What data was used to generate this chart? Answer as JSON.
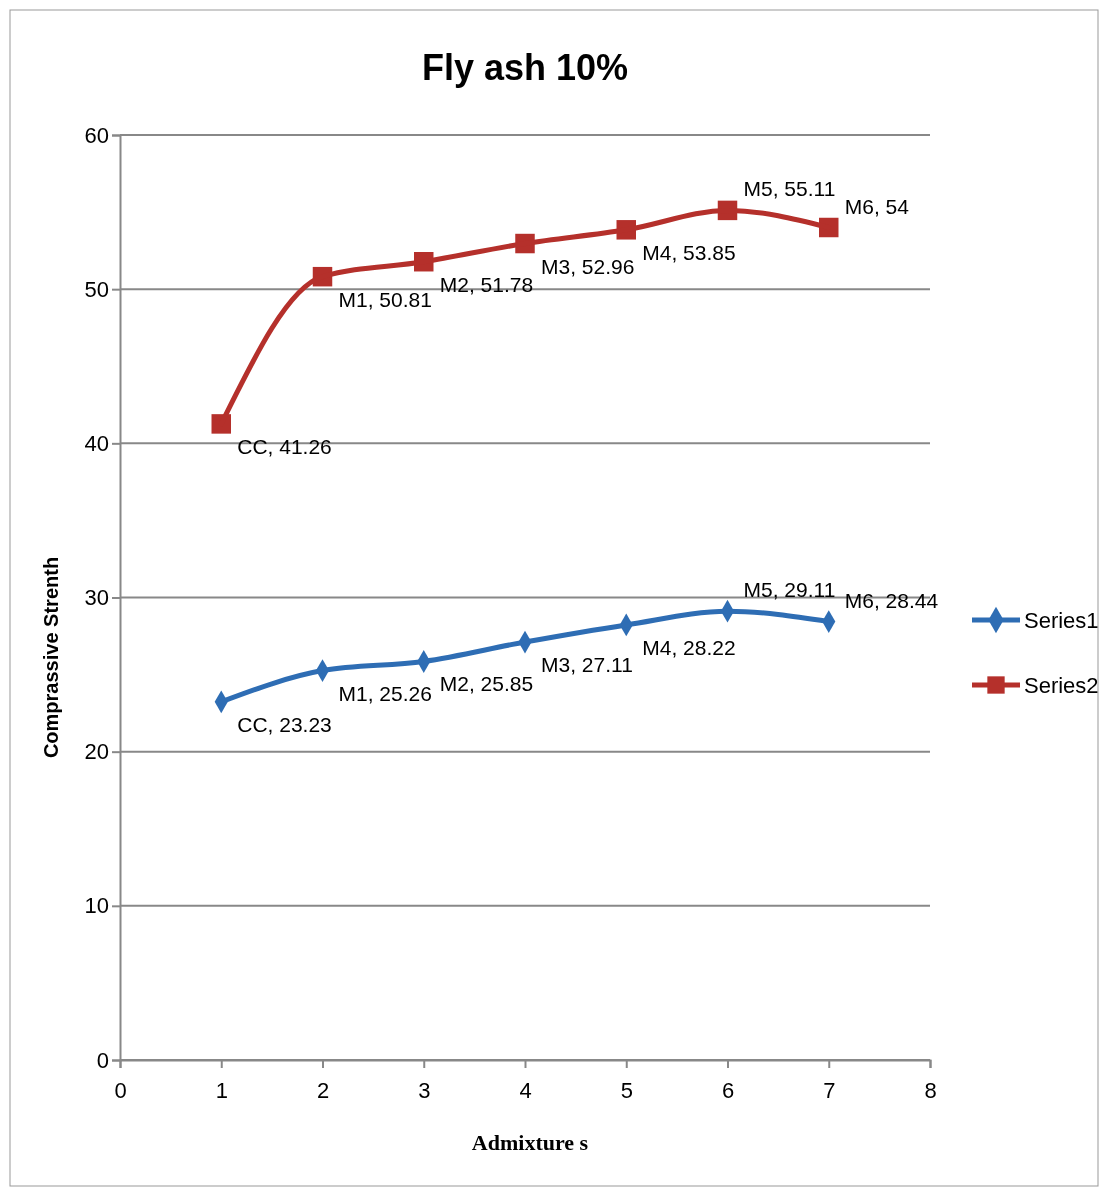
{
  "chart_data": {
    "type": "line",
    "title": "Fly ash 10%",
    "xlabel": "Admixture s",
    "ylabel": "Comprassive Strenth",
    "x": [
      1,
      2,
      3,
      4,
      5,
      6,
      7
    ],
    "series": [
      {
        "name": "Series1",
        "color": "#2e6db4",
        "marker": "diamond",
        "values": [
          23.23,
          25.26,
          25.85,
          27.11,
          28.22,
          29.11,
          28.44
        ],
        "value_labels": [
          "CC, 23.23",
          "M1, 25.26",
          "M2, 25.85",
          "M3, 27.11",
          "M4, 28.22",
          "M5, 29.11",
          "M6, 28.44"
        ]
      },
      {
        "name": "Series2",
        "color": "#b5302b",
        "marker": "square",
        "values": [
          41.26,
          50.81,
          51.78,
          52.96,
          53.85,
          55.11,
          54
        ],
        "value_labels": [
          "CC, 41.26",
          "M1, 50.81",
          "M2, 51.78",
          "M3, 52.96",
          "M4, 53.85",
          "M5, 55.11",
          "M6, 54"
        ]
      }
    ],
    "xlim": [
      0,
      8
    ],
    "xticks": [
      0,
      1,
      2,
      3,
      4,
      5,
      6,
      7,
      8
    ],
    "ylim": [
      0,
      60
    ],
    "yticks": [
      0,
      10,
      20,
      30,
      40,
      50,
      60
    ],
    "grid": "y",
    "legend": "right",
    "line_style": "solid"
  }
}
